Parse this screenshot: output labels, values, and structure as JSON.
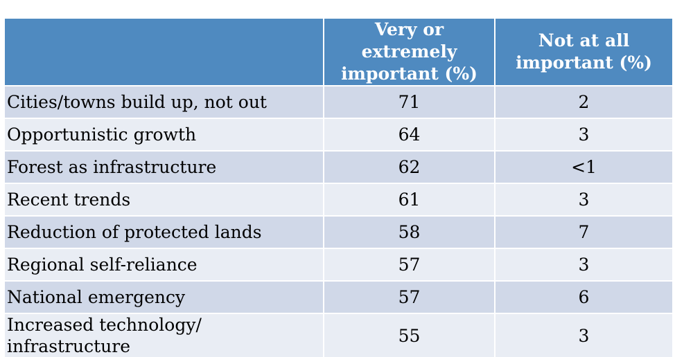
{
  "chart_data": {
    "type": "table",
    "columns": [
      "",
      "Very or extremely important (%)",
      "Not at all important (%)"
    ],
    "header_lines": {
      "col2": [
        "Very or extremely",
        "important (%)"
      ],
      "col3": [
        "Not at all",
        "important (%)"
      ]
    },
    "rows": [
      {
        "label": "Cities/towns build up, not out",
        "very": "71",
        "not": "2"
      },
      {
        "label": "Opportunistic growth",
        "very": "64",
        "not": "3"
      },
      {
        "label": "Forest as infrastructure",
        "very": "62",
        "not": "<1"
      },
      {
        "label": "Recent trends",
        "very": "61",
        "not": "3"
      },
      {
        "label": "Reduction of protected lands",
        "very": "58",
        "not": "7"
      },
      {
        "label": "Regional self-reliance",
        "very": "57",
        "not": "3"
      },
      {
        "label": "National emergency",
        "very": "57",
        "not": "6"
      },
      {
        "label": "Increased technology/ infrastructure",
        "label_lines": [
          "Increased technology/",
          "infrastructure"
        ],
        "very": "55",
        "not": "3"
      }
    ]
  },
  "colors": {
    "header_bg": "#4f8ac0",
    "header_text": "#ffffff",
    "row_odd": "#d0d8e8",
    "row_even": "#e9edf4"
  }
}
